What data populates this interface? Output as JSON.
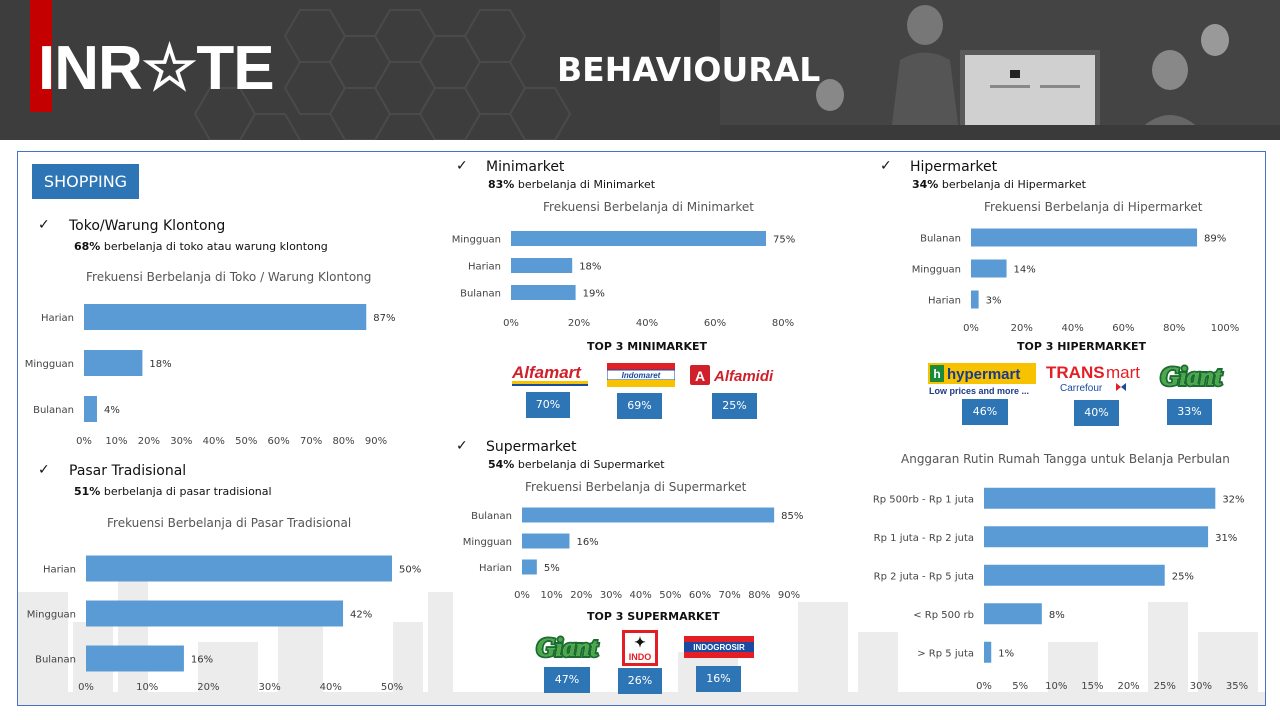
{
  "header": {
    "logo_text": "INR☆TE",
    "title": "BEHAVIOURAL"
  },
  "badge": "SHOPPING",
  "colors": {
    "bar": "#5b9bd5",
    "badge": "#2e75b6",
    "header": "#3d3d3d",
    "logo_accent": "#c40000"
  },
  "sections": {
    "toko": {
      "title": "Toko/Warung Klontong",
      "sub_bold": "68%",
      "sub_rest": " berbelanja di toko atau warung klontong"
    },
    "pasar": {
      "title": "Pasar Tradisional",
      "sub_bold": "51%",
      "sub_rest": " berbelanja di pasar tradisional"
    },
    "mini": {
      "title": "Minimarket",
      "sub_bold": "83%",
      "sub_rest": " berbelanja di Minimarket"
    },
    "super": {
      "title": "Supermarket",
      "sub_bold": "54%",
      "sub_rest": " berbelanja di Supermarket"
    },
    "hiper": {
      "title": "Hipermarket",
      "sub_bold": "34%",
      "sub_rest": " berbelanja di Hipermarket"
    }
  },
  "top3": {
    "mini": {
      "title": "TOP 3 MINIMARKET",
      "items": [
        {
          "name": "Alfamart",
          "value": "70%"
        },
        {
          "name": "Indomaret",
          "value": "69%"
        },
        {
          "name": "Alfamidi",
          "value": "25%"
        }
      ]
    },
    "super": {
      "title": "TOP 3 SUPERMARKET",
      "items": [
        {
          "name": "Giant",
          "value": "47%"
        },
        {
          "name": "Super Indo",
          "value": "26%"
        },
        {
          "name": "Indogrosir",
          "value": "16%"
        }
      ]
    },
    "hiper": {
      "title": "TOP 3 HIPERMARKET",
      "items": [
        {
          "name": "hypermart",
          "tagline": "Low prices and more ...",
          "value": "46%"
        },
        {
          "name": "TRANSmart",
          "tagline": "Carrefour",
          "value": "40%"
        },
        {
          "name": "Giant",
          "value": "33%"
        }
      ]
    }
  },
  "chart_data": [
    {
      "id": "toko",
      "type": "bar",
      "orientation": "horizontal",
      "title": "Frekuensi Berbelanja di Toko / Warung Klontong",
      "categories": [
        "Harian",
        "Mingguan",
        "Bulanan"
      ],
      "values": [
        87,
        18,
        4
      ],
      "labels": [
        "87%",
        "18%",
        "4%"
      ],
      "xlim": [
        0,
        90
      ],
      "xticks": [
        "0%",
        "10%",
        "20%",
        "30%",
        "40%",
        "50%",
        "60%",
        "70%",
        "80%",
        "90%"
      ],
      "grid": false,
      "legend": "none"
    },
    {
      "id": "pasar",
      "type": "bar",
      "orientation": "horizontal",
      "title": "Frekuensi Berbelanja di Pasar Tradisional",
      "categories": [
        "Harian",
        "Mingguan",
        "Bulanan"
      ],
      "values": [
        50,
        42,
        16
      ],
      "labels": [
        "50%",
        "42%",
        "16%"
      ],
      "xlim": [
        0,
        50
      ],
      "xticks": [
        "0%",
        "10%",
        "20%",
        "30%",
        "40%",
        "50%"
      ],
      "grid": false,
      "legend": "none"
    },
    {
      "id": "mini",
      "type": "bar",
      "orientation": "horizontal",
      "title": "Frekuensi Berbelanja di Minimarket",
      "categories": [
        "Mingguan",
        "Harian",
        "Bulanan"
      ],
      "values": [
        75,
        18,
        19
      ],
      "labels": [
        "75%",
        "18%",
        "19%"
      ],
      "xlim": [
        0,
        80
      ],
      "xticks": [
        "0%",
        "20%",
        "40%",
        "60%",
        "80%"
      ],
      "grid": false,
      "legend": "none"
    },
    {
      "id": "super",
      "type": "bar",
      "orientation": "horizontal",
      "title": "Frekuensi Berbelanja di Supermarket",
      "categories": [
        "Bulanan",
        "Mingguan",
        "Harian"
      ],
      "values": [
        85,
        16,
        5
      ],
      "labels": [
        "85%",
        "16%",
        "5%"
      ],
      "xlim": [
        0,
        90
      ],
      "xticks": [
        "0%",
        "10%",
        "20%",
        "30%",
        "40%",
        "50%",
        "60%",
        "70%",
        "80%",
        "90%"
      ],
      "grid": false,
      "legend": "none"
    },
    {
      "id": "hiper",
      "type": "bar",
      "orientation": "horizontal",
      "title": "Frekuensi Berbelanja di Hipermarket",
      "categories": [
        "Bulanan",
        "Mingguan",
        "Harian"
      ],
      "values": [
        89,
        14,
        3
      ],
      "labels": [
        "89%",
        "14%",
        "3%"
      ],
      "xlim": [
        0,
        100
      ],
      "xticks": [
        "0%",
        "20%",
        "40%",
        "60%",
        "80%",
        "100%"
      ],
      "grid": false,
      "legend": "none"
    },
    {
      "id": "anggaran",
      "type": "bar",
      "orientation": "horizontal",
      "title": "Anggaran Rutin Rumah Tangga untuk Belanja Perbulan",
      "categories": [
        "Rp 500rb - Rp 1 juta",
        "Rp 1 juta - Rp 2 juta",
        "Rp 2 juta - Rp 5 juta",
        "< Rp 500 rb",
        "> Rp 5 juta"
      ],
      "values": [
        32,
        31,
        25,
        8,
        1
      ],
      "labels": [
        "32%",
        "31%",
        "25%",
        "8%",
        "1%"
      ],
      "xlim": [
        0,
        35
      ],
      "xticks": [
        "0%",
        "5%",
        "10%",
        "15%",
        "20%",
        "25%",
        "30%",
        "35%"
      ],
      "grid": false,
      "legend": "none"
    }
  ]
}
